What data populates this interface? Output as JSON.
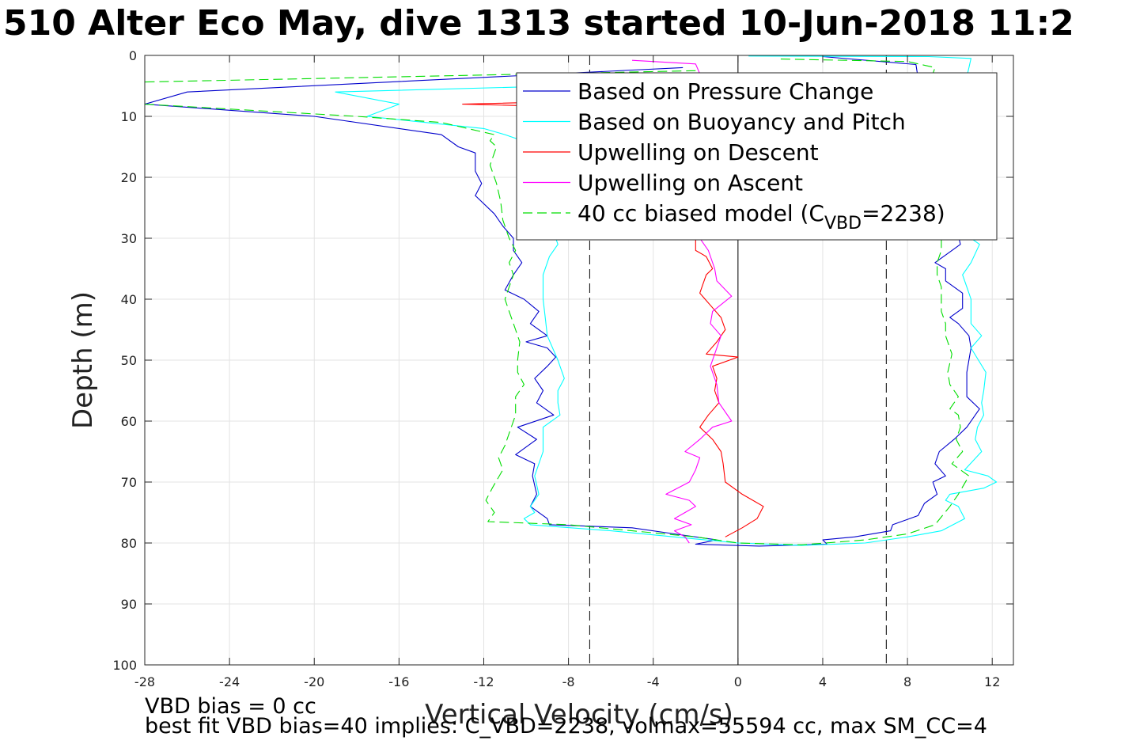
{
  "chart_data": {
    "type": "line",
    "title": "510 Alter Eco May, dive 1313 started 10-Jun-2018 11:2",
    "xlabel": "Vertical Velocity (cm/s)",
    "ylabel": "Depth (m)",
    "xlim": [
      -28,
      13
    ],
    "ylim": [
      0,
      100
    ],
    "y_reversed": true,
    "grid": true,
    "xticks": [
      "-28",
      "-24",
      "-20",
      "-16",
      "-12",
      "-8",
      "-4",
      "0",
      "4",
      "8",
      "12"
    ],
    "yticks": [
      "0",
      "10",
      "20",
      "30",
      "40",
      "50",
      "60",
      "70",
      "80",
      "90",
      "100"
    ],
    "reference_lines": [
      {
        "x": -7,
        "style": "dashed"
      },
      {
        "x": 0,
        "style": "solid"
      },
      {
        "x": 7,
        "style": "dashed"
      }
    ],
    "legend_position": "top-right",
    "legend": [
      {
        "label": "Based on Pressure Change",
        "sub": "",
        "tail": "",
        "color": "#0000cc",
        "dash": false
      },
      {
        "label": "Based on Buoyancy and Pitch",
        "sub": "",
        "tail": "",
        "color": "#00ffff",
        "dash": false
      },
      {
        "label": "Upwelling on Descent",
        "sub": "",
        "tail": "",
        "color": "#ff0000",
        "dash": false
      },
      {
        "label": "Upwelling on Ascent",
        "sub": "",
        "tail": "",
        "color": "#ff00ff",
        "dash": false
      },
      {
        "label": "40 cc biased model (C",
        "sub": "VBD",
        "tail": "=2238)",
        "color": "#00dd00",
        "dash": true
      }
    ],
    "series": [
      {
        "name": "Based on Pressure Change",
        "color": "#0000cc",
        "dash": false,
        "points": [
          [
            -2.6,
            2
          ],
          [
            -26,
            6
          ],
          [
            -28,
            8
          ],
          [
            -20,
            10
          ],
          [
            -14,
            13
          ],
          [
            -13.2,
            15
          ],
          [
            -12.4,
            16
          ],
          [
            -12.4,
            19
          ],
          [
            -12.1,
            21
          ],
          [
            -12.4,
            23
          ],
          [
            -11.5,
            26
          ],
          [
            -11.1,
            28
          ],
          [
            -10.6,
            30
          ],
          [
            -10.6,
            32
          ],
          [
            -10.2,
            34
          ],
          [
            -10.6,
            36
          ],
          [
            -11,
            38.5
          ],
          [
            -10.1,
            40
          ],
          [
            -9.4,
            42
          ],
          [
            -9.8,
            44
          ],
          [
            -9,
            46
          ],
          [
            -10,
            47
          ],
          [
            -9,
            48
          ],
          [
            -8.6,
            49.5
          ],
          [
            -9,
            51
          ],
          [
            -9.6,
            53
          ],
          [
            -9.2,
            55
          ],
          [
            -9.5,
            57
          ],
          [
            -8.7,
            59
          ],
          [
            -10.4,
            61
          ],
          [
            -9.5,
            63
          ],
          [
            -10.5,
            65.5
          ],
          [
            -9.6,
            67
          ],
          [
            -9.7,
            69
          ],
          [
            -9.5,
            72
          ],
          [
            -9.8,
            74
          ],
          [
            -9,
            76
          ],
          [
            -8.9,
            77
          ],
          [
            -5,
            77.5
          ],
          [
            -3,
            78.5
          ],
          [
            -1,
            79.5
          ],
          [
            -2,
            80.2
          ],
          [
            1,
            80.5
          ],
          [
            4.2,
            80.2
          ],
          [
            4,
            79.5
          ],
          [
            5.5,
            79
          ],
          [
            7.2,
            78
          ],
          [
            7.3,
            77
          ],
          [
            8.5,
            75.5
          ],
          [
            8.8,
            73.5
          ],
          [
            9.4,
            72
          ],
          [
            9.2,
            70
          ],
          [
            9.8,
            69
          ],
          [
            9.3,
            67
          ],
          [
            9.5,
            65
          ],
          [
            10.2,
            63
          ],
          [
            10.8,
            61
          ],
          [
            11.4,
            58
          ],
          [
            10.8,
            56
          ],
          [
            10.8,
            52
          ],
          [
            11,
            48
          ],
          [
            10.9,
            46
          ],
          [
            10.4,
            44
          ],
          [
            10,
            43
          ],
          [
            10.6,
            41.5
          ],
          [
            10.6,
            39
          ],
          [
            9.8,
            37
          ],
          [
            9.8,
            35
          ],
          [
            9.3,
            34
          ],
          [
            10.1,
            32
          ],
          [
            10.5,
            31
          ],
          [
            10.3,
            28
          ],
          [
            9.5,
            24
          ],
          [
            9.1,
            19
          ],
          [
            8.8,
            13
          ],
          [
            8.6,
            6
          ],
          [
            8.4,
            1.5
          ],
          [
            4,
            0.2
          ]
        ]
      },
      {
        "name": "Based on Buoyancy and Pitch",
        "color": "#00ffff",
        "dash": false,
        "points": [
          [
            -3,
            4.5
          ],
          [
            -19,
            6
          ],
          [
            -16,
            8
          ],
          [
            -17.5,
            10
          ],
          [
            -12,
            12
          ],
          [
            -11,
            13
          ],
          [
            -8.5,
            16
          ],
          [
            -8.6,
            20
          ],
          [
            -8.6,
            25
          ],
          [
            -8.6,
            30
          ],
          [
            -8.5,
            31
          ],
          [
            -8.9,
            33
          ],
          [
            -9.2,
            36
          ],
          [
            -9.2,
            40
          ],
          [
            -9.1,
            43
          ],
          [
            -9,
            46
          ],
          [
            -8.5,
            50
          ],
          [
            -8.2,
            53
          ],
          [
            -8.5,
            55
          ],
          [
            -8.5,
            57
          ],
          [
            -8.4,
            59
          ],
          [
            -9.2,
            61
          ],
          [
            -9.2,
            65
          ],
          [
            -9.6,
            69
          ],
          [
            -9.4,
            72
          ],
          [
            -9.8,
            74
          ],
          [
            -9.6,
            75
          ],
          [
            -10.1,
            76
          ],
          [
            -9.8,
            77
          ],
          [
            -6,
            78
          ],
          [
            -3,
            79
          ],
          [
            0,
            80
          ],
          [
            3,
            80.4
          ],
          [
            6,
            80
          ],
          [
            8,
            79
          ],
          [
            9.6,
            78
          ],
          [
            10.7,
            76
          ],
          [
            10.4,
            74
          ],
          [
            9.8,
            73
          ],
          [
            10,
            72
          ],
          [
            11.6,
            71
          ],
          [
            12.2,
            70
          ],
          [
            11.8,
            69
          ],
          [
            10.7,
            68
          ],
          [
            11.5,
            65
          ],
          [
            11.2,
            63
          ],
          [
            11.3,
            61
          ],
          [
            11.6,
            59
          ],
          [
            11.5,
            57
          ],
          [
            11.6,
            55
          ],
          [
            11.7,
            52
          ],
          [
            11,
            48
          ],
          [
            11.5,
            46
          ],
          [
            11,
            44
          ],
          [
            11,
            41.5
          ],
          [
            11,
            40
          ],
          [
            10.8,
            38
          ],
          [
            10.6,
            36
          ],
          [
            11,
            34
          ],
          [
            11.4,
            31
          ],
          [
            11,
            30
          ],
          [
            10.9,
            20
          ],
          [
            11,
            15
          ],
          [
            10.8,
            10
          ],
          [
            10.7,
            5
          ],
          [
            10.9,
            2
          ],
          [
            11,
            0.5
          ],
          [
            9,
            0.2
          ],
          [
            0.5,
            0.1
          ]
        ]
      },
      {
        "name": "Upwelling on Descent",
        "color": "#ff0000",
        "dash": false,
        "points": [
          [
            -1.4,
            7
          ],
          [
            -13,
            8
          ],
          [
            -1.5,
            9
          ],
          [
            -1.8,
            29
          ],
          [
            -2,
            30
          ],
          [
            -2,
            32
          ],
          [
            -1.5,
            33
          ],
          [
            -1.2,
            35
          ],
          [
            -1.5,
            36
          ],
          [
            -1.7,
            38
          ],
          [
            -1.8,
            39
          ],
          [
            -1.3,
            41
          ],
          [
            -0.8,
            43
          ],
          [
            -0.6,
            45
          ],
          [
            -1,
            47
          ],
          [
            -1.5,
            49
          ],
          [
            0,
            49.5
          ],
          [
            -1.2,
            51
          ],
          [
            -1,
            53
          ],
          [
            -1.1,
            55
          ],
          [
            -0.9,
            57
          ],
          [
            -1.4,
            59
          ],
          [
            -1.8,
            61
          ],
          [
            -1.2,
            63
          ],
          [
            -0.8,
            65
          ],
          [
            -0.7,
            67
          ],
          [
            -0.6,
            70
          ],
          [
            0.2,
            72
          ],
          [
            1.2,
            74
          ],
          [
            0.9,
            76
          ],
          [
            0.2,
            77.5
          ],
          [
            -0.6,
            79
          ]
        ]
      },
      {
        "name": "Upwelling on Ascent",
        "color": "#ff00ff",
        "dash": false,
        "points": [
          [
            -5,
            0.8
          ],
          [
            -2,
            1.4
          ],
          [
            -1.8,
            3
          ],
          [
            -1.6,
            4
          ],
          [
            -1.6,
            7
          ],
          [
            -1.5,
            10
          ],
          [
            -1.6,
            14
          ],
          [
            -1.7,
            18
          ],
          [
            -1.8,
            21
          ],
          [
            -2,
            24
          ],
          [
            -2,
            27
          ],
          [
            -1.8,
            30
          ],
          [
            -1.4,
            32
          ],
          [
            -1.1,
            35
          ],
          [
            -1,
            37
          ],
          [
            -0.3,
            39.5
          ],
          [
            -1.2,
            42
          ],
          [
            -1.3,
            44
          ],
          [
            -0.8,
            46
          ],
          [
            -1,
            48
          ],
          [
            -1.3,
            51
          ],
          [
            -1,
            54
          ],
          [
            -0.9,
            57
          ],
          [
            -0.3,
            60
          ],
          [
            -1.2,
            61
          ],
          [
            -1.8,
            63
          ],
          [
            -2.5,
            65
          ],
          [
            -1.8,
            66
          ],
          [
            -2,
            68
          ],
          [
            -2.3,
            70
          ],
          [
            -3.4,
            72
          ],
          [
            -2.3,
            73
          ],
          [
            -2,
            74
          ],
          [
            -2.5,
            75
          ],
          [
            -3,
            76
          ],
          [
            -2.2,
            77
          ],
          [
            -3,
            78
          ],
          [
            -2.5,
            79
          ],
          [
            -2.3,
            80
          ]
        ]
      },
      {
        "name": "40 cc biased model (CVBD=2238)",
        "color": "#00dd00",
        "dash": true,
        "points": [
          [
            -2,
            2.5
          ],
          [
            -30,
            4.5
          ],
          [
            -28,
            8
          ],
          [
            -18,
            10
          ],
          [
            -14,
            11
          ],
          [
            -11.5,
            13
          ],
          [
            -11.7,
            14
          ],
          [
            -11.4,
            15
          ],
          [
            -11.7,
            18
          ],
          [
            -11.4,
            21
          ],
          [
            -11.2,
            24
          ],
          [
            -11.1,
            27
          ],
          [
            -10.8,
            30
          ],
          [
            -10.5,
            32
          ],
          [
            -10.8,
            34
          ],
          [
            -10.6,
            36
          ],
          [
            -10.8,
            38
          ],
          [
            -11,
            40
          ],
          [
            -10.8,
            42
          ],
          [
            -10.5,
            45
          ],
          [
            -10.3,
            47
          ],
          [
            -10.4,
            50
          ],
          [
            -10.4,
            52
          ],
          [
            -10.1,
            54
          ],
          [
            -10.5,
            56
          ],
          [
            -10.5,
            59
          ],
          [
            -10.8,
            62
          ],
          [
            -11,
            64
          ],
          [
            -11.3,
            66
          ],
          [
            -11.1,
            68
          ],
          [
            -11.6,
            71
          ],
          [
            -11.9,
            73
          ],
          [
            -11.5,
            75
          ],
          [
            -11.8,
            76.5
          ],
          [
            -8,
            77
          ],
          [
            -5,
            78
          ],
          [
            -2,
            79
          ],
          [
            0,
            80
          ],
          [
            3,
            80.3
          ],
          [
            6,
            79.5
          ],
          [
            8,
            78.5
          ],
          [
            9.3,
            77
          ],
          [
            10,
            74
          ],
          [
            10.4,
            72
          ],
          [
            10.9,
            69
          ],
          [
            10.1,
            67
          ],
          [
            10.6,
            65
          ],
          [
            10.3,
            63
          ],
          [
            10.5,
            61
          ],
          [
            10.4,
            59
          ],
          [
            10,
            58
          ],
          [
            10.4,
            56
          ],
          [
            10,
            54
          ],
          [
            9.9,
            52
          ],
          [
            10.1,
            49
          ],
          [
            9.8,
            46
          ],
          [
            9.8,
            44
          ],
          [
            9.6,
            42
          ],
          [
            9.6,
            40
          ],
          [
            9.6,
            38
          ],
          [
            9.4,
            36
          ],
          [
            9.4,
            34
          ],
          [
            9.6,
            32
          ],
          [
            9.6,
            30
          ],
          [
            9.4,
            25
          ],
          [
            9.2,
            20
          ],
          [
            9.2,
            15
          ],
          [
            9.1,
            10
          ],
          [
            9,
            5
          ],
          [
            9.3,
            2
          ],
          [
            8,
            1
          ],
          [
            2,
            0.6
          ]
        ]
      }
    ]
  },
  "footnotes": {
    "line1": "VBD bias = 0 cc",
    "line2": "best fit VBD bias=40 implies: C_VBD=2238, volmax=55594 cc, max SM_CC=4"
  }
}
